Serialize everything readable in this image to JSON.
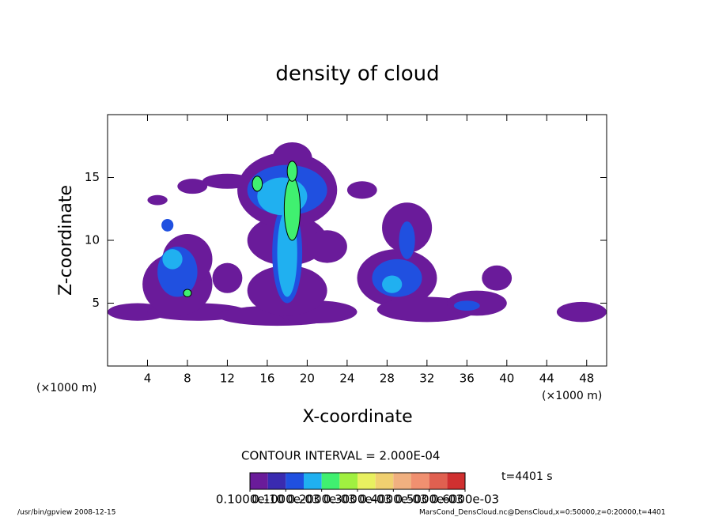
{
  "chart_data": {
    "type": "contour",
    "title": "density of cloud",
    "xlabel": "X-coordinate",
    "ylabel": "Z-coordinate",
    "xunit": "(×1000 m)",
    "yunit": "(×1000 m)",
    "xlim": [
      0,
      50
    ],
    "ylim": [
      0,
      20
    ],
    "xticks": [
      4,
      8,
      12,
      16,
      20,
      24,
      28,
      32,
      36,
      40,
      44,
      48
    ],
    "yticks": [
      5,
      10,
      15
    ],
    "regions": [
      {
        "x": 3,
        "z": 4.3,
        "width": 6,
        "height": 1.4,
        "value": 3e-05
      },
      {
        "x": 9,
        "z": 4.3,
        "width": 10,
        "height": 1.4,
        "value": 3e-05
      },
      {
        "x": 17,
        "z": 4,
        "width": 12,
        "height": 1.6,
        "value": 3e-05
      },
      {
        "x": 21,
        "z": 4.3,
        "width": 8,
        "height": 1.8,
        "value": 3e-05
      },
      {
        "x": 7,
        "z": 6.5,
        "width": 7,
        "height": 5,
        "value": 3e-05
      },
      {
        "x": 8,
        "z": 8.5,
        "width": 5,
        "height": 4,
        "value": 3e-05
      },
      {
        "x": 12,
        "z": 7,
        "width": 3,
        "height": 2.4,
        "value": 3e-05
      },
      {
        "x": 18,
        "z": 6,
        "width": 8,
        "height": 4,
        "value": 3e-05
      },
      {
        "x": 18,
        "z": 10,
        "width": 8,
        "height": 4,
        "value": 3e-05
      },
      {
        "x": 18,
        "z": 14,
        "width": 10,
        "height": 6,
        "value": 3e-05
      },
      {
        "x": 12,
        "z": 14.7,
        "width": 5,
        "height": 1.2,
        "value": 3e-05
      },
      {
        "x": 8.5,
        "z": 14.3,
        "width": 3,
        "height": 1.2,
        "value": 3e-05
      },
      {
        "x": 5,
        "z": 13.2,
        "width": 2,
        "height": 0.8,
        "value": 3e-05
      },
      {
        "x": 25.5,
        "z": 14,
        "width": 3,
        "height": 1.4,
        "value": 3e-05
      },
      {
        "x": 30,
        "z": 11,
        "width": 5,
        "height": 4,
        "value": 3e-05
      },
      {
        "x": 29,
        "z": 7,
        "width": 8,
        "height": 4.6,
        "value": 3e-05
      },
      {
        "x": 32,
        "z": 4.5,
        "width": 10,
        "height": 2,
        "value": 3e-05
      },
      {
        "x": 37,
        "z": 5,
        "width": 6,
        "height": 2,
        "value": 3e-05
      },
      {
        "x": 39,
        "z": 7,
        "width": 3,
        "height": 2,
        "value": 3e-05
      },
      {
        "x": 47.5,
        "z": 4.3,
        "width": 5,
        "height": 1.6,
        "value": 3e-05
      },
      {
        "x": 18.5,
        "z": 16.5,
        "width": 4,
        "height": 2.6,
        "value": 3e-05
      },
      {
        "x": 22,
        "z": 9.5,
        "width": 4,
        "height": 2.6,
        "value": 3e-05
      },
      {
        "x": 7,
        "z": 7.5,
        "width": 4,
        "height": 4,
        "value": 0.0001
      },
      {
        "x": 18,
        "z": 14,
        "width": 8,
        "height": 4,
        "value": 0.0001
      },
      {
        "x": 18,
        "z": 9,
        "width": 3,
        "height": 8,
        "value": 0.0001
      },
      {
        "x": 29,
        "z": 7,
        "width": 5,
        "height": 3,
        "value": 0.0001
      },
      {
        "x": 30,
        "z": 10,
        "width": 1.6,
        "height": 3,
        "value": 0.0001
      },
      {
        "x": 36,
        "z": 4.8,
        "width": 2.6,
        "height": 0.8,
        "value": 0.0001
      },
      {
        "x": 6,
        "z": 11.2,
        "width": 1.2,
        "height": 1,
        "value": 0.0001
      },
      {
        "x": 17.5,
        "z": 13.5,
        "width": 5,
        "height": 3,
        "value": 0.00015
      },
      {
        "x": 18,
        "z": 9,
        "width": 2,
        "height": 7,
        "value": 0.00015
      },
      {
        "x": 6.5,
        "z": 8.5,
        "width": 2,
        "height": 1.6,
        "value": 0.00015
      },
      {
        "x": 28.5,
        "z": 6.5,
        "width": 2,
        "height": 1.4,
        "value": 0.00015
      },
      {
        "x": 18.5,
        "z": 12.5,
        "width": 1.6,
        "height": 5,
        "value": 0.00022
      },
      {
        "x": 15,
        "z": 14.5,
        "width": 1,
        "height": 1.2,
        "value": 0.00022
      },
      {
        "x": 18.5,
        "z": 15.5,
        "width": 1,
        "height": 1.6,
        "value": 0.00022
      },
      {
        "x": 8,
        "z": 5.8,
        "width": 0.8,
        "height": 0.6,
        "value": 0.00022
      }
    ],
    "colorbar": {
      "lim": [
        0,
        0.0006
      ],
      "colors": [
        "#6a1b9a",
        "#3a2bb0",
        "#2050e0",
        "#20b0f0",
        "#40f070",
        "#a0f040",
        "#e8f060",
        "#f0d070",
        "#f0b080",
        "#f09070",
        "#e06050",
        "#d03030"
      ],
      "ticks": [
        {
          "value": 1e-11,
          "label": "0.1000e-10"
        },
        {
          "value": 0.0001,
          "label": "0.1000e-03"
        },
        {
          "value": 0.0002,
          "label": "0.2000e-03"
        },
        {
          "value": 0.0003,
          "label": "0.3000e-03"
        },
        {
          "value": 0.0004,
          "label": "0.4000e-03"
        },
        {
          "value": 0.0005,
          "label": "0.5000e-03"
        },
        {
          "value": 0.0006,
          "label": "0.6000e-03"
        }
      ]
    },
    "contour_interval_label": "CONTOUR INTERVAL = 2.000E-04",
    "time_label": "t=4401 s",
    "footer_left": "/usr/bin/gpview  2008-12-15",
    "footer_right": "MarsCond_DensCloud.nc@DensCloud,x=0:50000,z=0:20000,t=4401"
  }
}
